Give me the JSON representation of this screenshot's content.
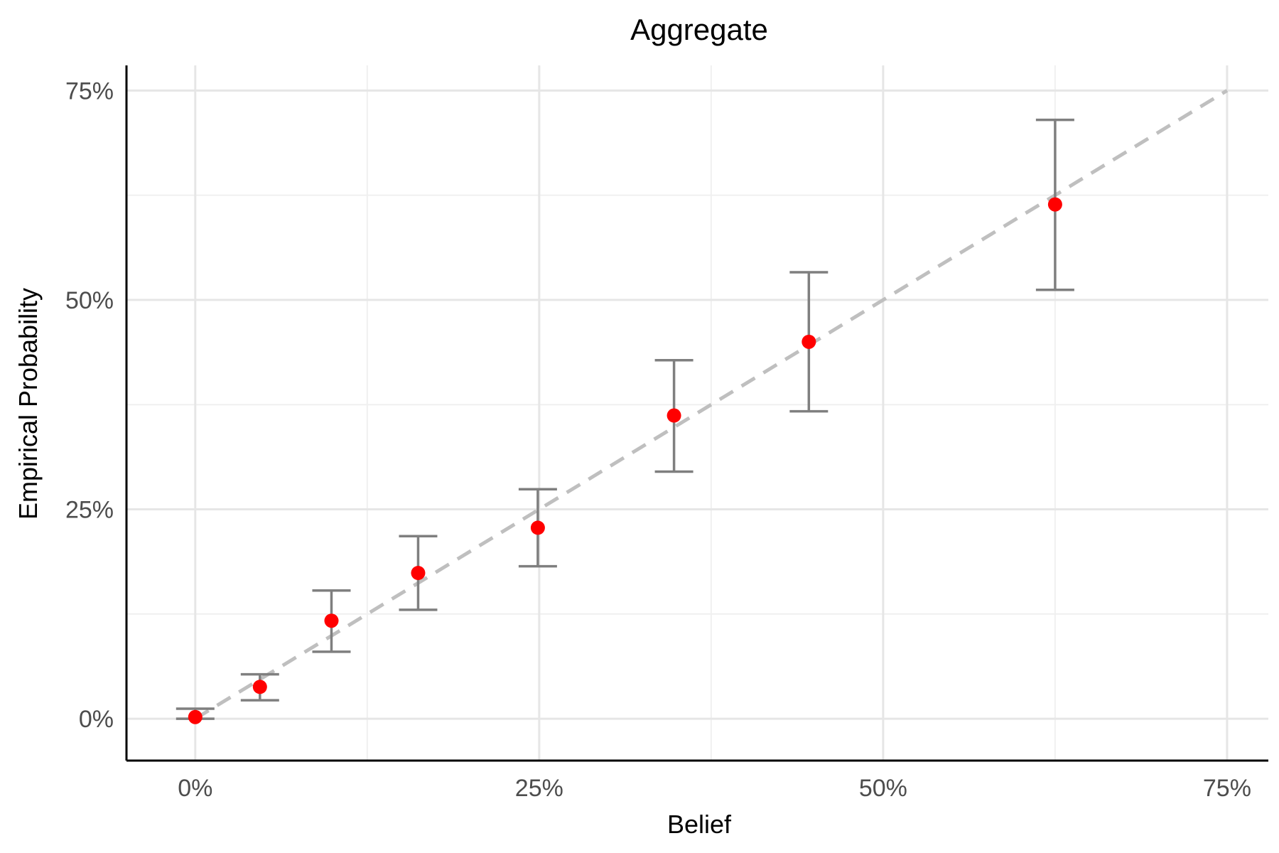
{
  "chart_data": {
    "type": "scatter",
    "title": "Aggregate",
    "xlabel": "Belief",
    "ylabel": "Empirical Probability",
    "xlim": [
      -0.05,
      0.78
    ],
    "ylim": [
      -0.05,
      0.78
    ],
    "x_ticks": [
      {
        "value": 0,
        "label": "0%"
      },
      {
        "value": 0.25,
        "label": "25%"
      },
      {
        "value": 0.5,
        "label": "50%"
      },
      {
        "value": 0.75,
        "label": "75%"
      }
    ],
    "y_ticks": [
      {
        "value": 0,
        "label": "0%"
      },
      {
        "value": 0.25,
        "label": "25%"
      },
      {
        "value": 0.5,
        "label": "50%"
      },
      {
        "value": 0.75,
        "label": "75%"
      }
    ],
    "x_minor": [
      0.125,
      0.375,
      0.625
    ],
    "y_minor": [
      0.125,
      0.375,
      0.625
    ],
    "grid": true,
    "reference_line": {
      "from": [
        0,
        0
      ],
      "to": [
        0.75,
        0.75
      ],
      "style": "dashed",
      "color": "#bfbfbf"
    },
    "points": [
      {
        "x": 0.0,
        "y": 0.002,
        "lo": 0.0,
        "hi": 0.012
      },
      {
        "x": 0.047,
        "y": 0.038,
        "lo": 0.022,
        "hi": 0.053
      },
      {
        "x": 0.099,
        "y": 0.117,
        "lo": 0.08,
        "hi": 0.153
      },
      {
        "x": 0.162,
        "y": 0.174,
        "lo": 0.13,
        "hi": 0.218
      },
      {
        "x": 0.249,
        "y": 0.228,
        "lo": 0.182,
        "hi": 0.274
      },
      {
        "x": 0.348,
        "y": 0.362,
        "lo": 0.295,
        "hi": 0.428
      },
      {
        "x": 0.446,
        "y": 0.45,
        "lo": 0.367,
        "hi": 0.533
      },
      {
        "x": 0.625,
        "y": 0.614,
        "lo": 0.512,
        "hi": 0.715
      }
    ],
    "point_color": "#ff0000",
    "errorbar_color": "#7f7f7f"
  }
}
